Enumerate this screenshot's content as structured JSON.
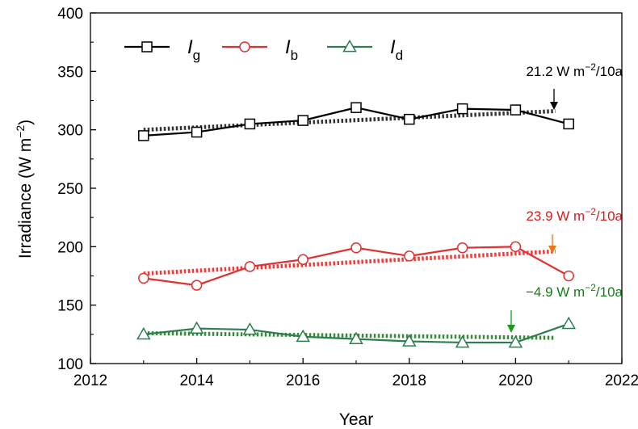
{
  "chart_data": {
    "type": "line",
    "xlabel": "Year",
    "ylabel_main": "Irradiance (W m",
    "ylabel_sup": "−2",
    "ylabel_close": ")",
    "xlim": [
      2012,
      2022
    ],
    "ylim": [
      100,
      400
    ],
    "xticks": [
      "2012",
      "2014",
      "2016",
      "2018",
      "2020",
      "2022"
    ],
    "yticks": [
      "100",
      "150",
      "200",
      "250",
      "300",
      "350",
      "400"
    ],
    "x": [
      2013,
      2014,
      2015,
      2016,
      2017,
      2018,
      2019,
      2020,
      2021
    ],
    "series": [
      {
        "name_main": "I",
        "name_sub": "g",
        "color": "#000000",
        "marker": "square",
        "values": [
          295,
          298,
          305,
          308,
          319,
          309,
          318,
          317,
          305
        ],
        "trend": [
          300,
          316
        ]
      },
      {
        "name_main": "I",
        "name_sub": "b",
        "color": "#e03030",
        "marker": "circle",
        "values": [
          173,
          167,
          183,
          189,
          199,
          192,
          199,
          200,
          175
        ],
        "trend": [
          177,
          196
        ]
      },
      {
        "name_main": "I",
        "name_sub": "d",
        "color": "#2e7d4f",
        "marker": "triangle",
        "values": [
          125,
          130,
          129,
          123,
          121,
          119,
          118,
          118,
          134
        ],
        "trend": [
          126,
          122
        ]
      }
    ],
    "trend_colors": [
      "#333333",
      "#ff3333",
      "#3a8a3a"
    ],
    "annotations": [
      {
        "prefix": "21.2 W m",
        "sup": "−2",
        "suffix": "/10a",
        "color": "#000000",
        "arrow_color": "#000000"
      },
      {
        "prefix": "23.9 W m",
        "sup": "−2",
        "suffix": "/10a",
        "color": "#cc2222",
        "arrow_color": "#e87817"
      },
      {
        "prefix": "−4.9 W m",
        "sup": "−2",
        "suffix": "/10a",
        "color": "#1a7a1a",
        "arrow_color": "#1a9a1a"
      }
    ],
    "legend_position": "top-left",
    "grid": false
  }
}
